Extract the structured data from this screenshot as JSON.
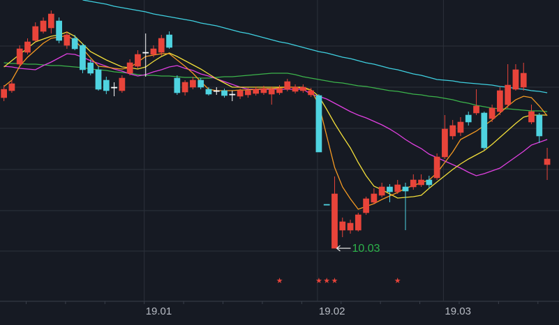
{
  "chart_data": {
    "type": "candlestick",
    "categories": [
      null,
      null,
      null,
      null,
      null,
      null,
      null,
      null,
      null,
      null,
      null,
      null,
      null,
      null,
      null,
      null,
      null,
      null,
      "19.01",
      null,
      null,
      null,
      null,
      null,
      null,
      null,
      null,
      null,
      null,
      null,
      null,
      null,
      null,
      null,
      null,
      null,
      null,
      null,
      null,
      null,
      "19.02",
      null,
      null,
      null,
      null,
      null,
      null,
      null,
      null,
      null,
      null,
      null,
      null,
      null,
      null,
      null,
      "19.03",
      null,
      null,
      null,
      null,
      null,
      null,
      null,
      null,
      null,
      null,
      null,
      null,
      null,
      null
    ],
    "open": [
      14.35,
      14.55,
      15.31,
      15.65,
      15.99,
      16.25,
      16.35,
      16.55,
      15.85,
      16.05,
      15.85,
      15.35,
      15.15,
      14.85,
      14.65,
      14.55,
      15.05,
      15.25,
      15.65,
      15.59,
      15.65,
      16.15,
      14.91,
      14.51,
      14.65,
      14.85,
      14.59,
      14.55,
      14.55,
      14.45,
      14.39,
      14.43,
      14.47,
      14.49,
      14.45,
      14.49,
      14.59,
      14.53,
      14.55,
      14.43,
      14.41,
      11.29,
      10.03,
      10.55,
      10.55,
      10.55,
      11.05,
      11.35,
      11.55,
      11.79,
      11.65,
      11.79,
      11.79,
      11.85,
      11.99,
      12.05,
      12.65,
      13.25,
      13.35,
      13.85,
      13.91,
      13.91,
      13.75,
      13.95,
      14.15,
      14.59,
      14.65,
      13.65,
      13.85,
      12.43,
      null
    ],
    "high": [
      14.71,
      14.85,
      15.85,
      16.05,
      16.51,
      16.65,
      16.85,
      16.65,
      16.25,
      16.15,
      15.91,
      15.45,
      15.25,
      14.95,
      14.79,
      14.99,
      15.45,
      15.71,
      16.19,
      15.85,
      16.15,
      16.25,
      14.99,
      14.85,
      14.95,
      14.91,
      14.65,
      14.65,
      14.61,
      14.55,
      14.61,
      14.63,
      14.67,
      14.69,
      14.67,
      14.71,
      14.89,
      14.73,
      14.73,
      14.63,
      14.45,
      11.29,
      12.09,
      10.91,
      10.85,
      11.05,
      11.51,
      11.75,
      11.91,
      11.87,
      11.99,
      11.91,
      12.15,
      12.15,
      12.11,
      12.75,
      13.85,
      13.71,
      13.79,
      13.95,
      14.59,
      13.95,
      14.15,
      14.65,
      15.31,
      15.31,
      15.35,
      14.15,
      13.91,
      12.91,
      null
    ],
    "low": [
      14.25,
      14.49,
      15.25,
      15.59,
      15.95,
      16.19,
      16.19,
      15.91,
      15.75,
      15.71,
      15.05,
      14.99,
      14.55,
      14.45,
      14.39,
      14.49,
      14.99,
      15.19,
      14.95,
      15.51,
      15.55,
      15.75,
      14.43,
      14.41,
      14.59,
      14.59,
      14.41,
      14.43,
      14.35,
      14.25,
      14.31,
      14.35,
      14.41,
      14.43,
      14.15,
      14.43,
      14.53,
      14.47,
      14.49,
      14.37,
      12.79,
      11.29,
      10.03,
      10.35,
      10.45,
      10.51,
      10.99,
      11.29,
      11.49,
      11.35,
      11.59,
      10.55,
      11.71,
      11.79,
      11.75,
      11.99,
      12.59,
      13.15,
      13.25,
      13.55,
      13.85,
      12.85,
      13.65,
      13.85,
      14.05,
      14.55,
      14.55,
      13.59,
      13.05,
      11.99,
      null
    ],
    "close": [
      14.59,
      14.75,
      15.75,
      15.95,
      16.39,
      16.55,
      16.75,
      15.99,
      16.15,
      15.75,
      15.15,
      15.05,
      14.59,
      14.55,
      14.65,
      14.91,
      15.35,
      15.59,
      15.65,
      15.75,
      16.05,
      15.79,
      14.49,
      14.79,
      14.85,
      14.65,
      14.45,
      14.55,
      14.41,
      14.45,
      14.55,
      14.55,
      14.59,
      14.61,
      14.59,
      14.61,
      14.81,
      14.65,
      14.65,
      14.55,
      12.79,
      11.29,
      11.59,
      10.79,
      10.75,
      10.99,
      11.45,
      11.59,
      11.79,
      11.65,
      11.85,
      11.67,
      11.99,
      11.99,
      11.85,
      12.65,
      13.45,
      13.55,
      13.65,
      13.65,
      14.11,
      12.91,
      14.05,
      14.55,
      14.71,
      15.15,
      15.05,
      13.95,
      13.25,
      12.59,
      null
    ],
    "up_color": "#e8443a",
    "down_color": "#4fd3e0",
    "flat_color": "#ffffff",
    "series": [
      {
        "color": "#3fd0e0",
        "values": [
          null,
          null,
          null,
          null,
          null,
          null,
          null,
          null,
          null,
          null,
          17.15,
          17.11,
          17.07,
          17.03,
          16.97,
          16.93,
          16.89,
          16.85,
          16.81,
          16.75,
          16.71,
          16.67,
          16.63,
          16.59,
          16.55,
          16.49,
          16.45,
          16.41,
          16.35,
          16.29,
          16.23,
          16.19,
          16.13,
          16.07,
          16.01,
          15.95,
          15.91,
          15.85,
          15.79,
          15.73,
          15.67,
          15.63,
          15.57,
          15.51,
          15.47,
          15.41,
          15.35,
          15.31,
          15.25,
          15.19,
          15.15,
          15.09,
          15.03,
          14.99,
          14.93,
          14.87,
          14.85,
          14.83,
          14.79,
          14.77,
          14.75,
          14.73,
          14.71,
          14.67,
          14.65,
          14.61,
          14.59,
          14.55,
          14.53,
          14.49,
          null
        ]
      },
      {
        "color": "#3cb44b",
        "values": [
          15.35,
          15.33,
          15.33,
          15.31,
          15.31,
          15.29,
          15.27,
          15.27,
          15.25,
          15.23,
          15.21,
          15.17,
          15.15,
          15.13,
          15.09,
          15.07,
          15.05,
          15.01,
          14.99,
          14.99,
          14.97,
          14.97,
          14.95,
          14.93,
          14.93,
          14.91,
          14.91,
          14.93,
          14.95,
          14.95,
          14.97,
          14.99,
          15.01,
          15.03,
          15.05,
          15.05,
          15.05,
          15.01,
          14.95,
          14.91,
          14.87,
          14.83,
          14.79,
          14.77,
          14.73,
          14.69,
          14.67,
          14.63,
          14.59,
          14.55,
          14.53,
          14.49,
          14.45,
          14.43,
          14.39,
          14.37,
          14.33,
          14.29,
          14.23,
          14.19,
          14.13,
          14.09,
          14.05,
          14.03,
          14.03,
          14.01,
          13.99,
          13.97,
          13.97,
          13.95,
          null
        ]
      },
      {
        "color": "#e040e0",
        "values": [
          15.25,
          15.23,
          15.19,
          15.17,
          15.15,
          15.27,
          15.37,
          15.49,
          15.61,
          15.59,
          15.51,
          15.41,
          15.33,
          15.25,
          15.17,
          15.11,
          15.03,
          14.97,
          15.01,
          15.09,
          15.15,
          15.23,
          15.27,
          15.19,
          15.13,
          15.03,
          14.97,
          14.89,
          14.81,
          14.73,
          14.65,
          14.59,
          14.59,
          14.59,
          14.59,
          14.59,
          14.59,
          14.59,
          14.59,
          14.45,
          14.39,
          14.31,
          14.19,
          14.07,
          13.95,
          13.85,
          13.77,
          13.67,
          13.57,
          13.45,
          13.31,
          13.15,
          13.01,
          12.89,
          12.73,
          12.63,
          12.53,
          12.43,
          12.33,
          12.21,
          12.11,
          12.17,
          12.25,
          12.33,
          12.49,
          12.65,
          12.81,
          12.99,
          13.07,
          13.15,
          null
        ]
      },
      {
        "color": "#f2de3a",
        "values": [
          15.23,
          15.41,
          15.59,
          15.77,
          15.95,
          16.03,
          16.11,
          16.15,
          16.23,
          16.11,
          15.89,
          15.67,
          15.55,
          15.43,
          15.33,
          15.23,
          15.21,
          15.17,
          15.23,
          15.39,
          15.53,
          15.63,
          15.53,
          15.41,
          15.29,
          15.17,
          15.03,
          14.89,
          14.77,
          14.65,
          14.65,
          14.65,
          14.65,
          14.65,
          14.65,
          14.65,
          14.65,
          14.65,
          14.65,
          14.57,
          14.39,
          14.01,
          13.61,
          13.25,
          12.91,
          12.49,
          12.11,
          11.81,
          11.71,
          11.59,
          11.47,
          11.49,
          11.51,
          11.55,
          11.75,
          11.93,
          12.11,
          12.29,
          12.45,
          12.59,
          12.71,
          12.83,
          13.01,
          13.21,
          13.41,
          13.61,
          13.79,
          13.85,
          13.85,
          13.85,
          null
        ]
      },
      {
        "color": "#f59a23",
        "values": [
          14.67,
          14.85,
          15.25,
          15.51,
          15.71,
          15.91,
          16.05,
          16.09,
          16.13,
          15.99,
          15.75,
          15.49,
          15.25,
          15.23,
          15.19,
          15.17,
          15.21,
          15.37,
          15.53,
          15.57,
          15.61,
          15.61,
          15.43,
          15.25,
          15.05,
          14.81,
          14.59,
          14.55,
          14.55,
          14.55,
          14.57,
          14.57,
          14.59,
          14.61,
          14.61,
          14.63,
          14.65,
          14.65,
          14.61,
          14.57,
          14.15,
          13.25,
          12.35,
          11.79,
          11.45,
          11.15,
          11.23,
          11.31,
          11.43,
          11.53,
          11.63,
          11.75,
          11.83,
          11.91,
          11.99,
          12.19,
          12.49,
          12.79,
          13.15,
          13.27,
          13.39,
          13.55,
          13.71,
          13.91,
          14.11,
          14.29,
          14.39,
          14.35,
          14.11,
          13.83,
          null
        ]
      }
    ],
    "annotations": [
      {
        "label": "10.03",
        "value": 10.03,
        "color": "#2db34a"
      }
    ],
    "signals": [
      null,
      null,
      null,
      null,
      null,
      null,
      null,
      null,
      null,
      null,
      null,
      null,
      null,
      null,
      null,
      null,
      null,
      null,
      null,
      null,
      null,
      null,
      null,
      null,
      null,
      null,
      null,
      null,
      null,
      null,
      null,
      null,
      null,
      null,
      null,
      "★",
      null,
      null,
      null,
      null,
      "★",
      "★",
      "★",
      null,
      null,
      null,
      null,
      null,
      null,
      null,
      "★",
      null,
      null,
      null,
      null,
      null,
      null,
      null,
      null,
      null,
      null,
      null,
      null,
      null,
      null,
      null,
      null,
      null,
      null,
      null,
      null
    ],
    "signal_color": "#e8443a",
    "ylim": [
      8.51,
      17.15
    ]
  }
}
